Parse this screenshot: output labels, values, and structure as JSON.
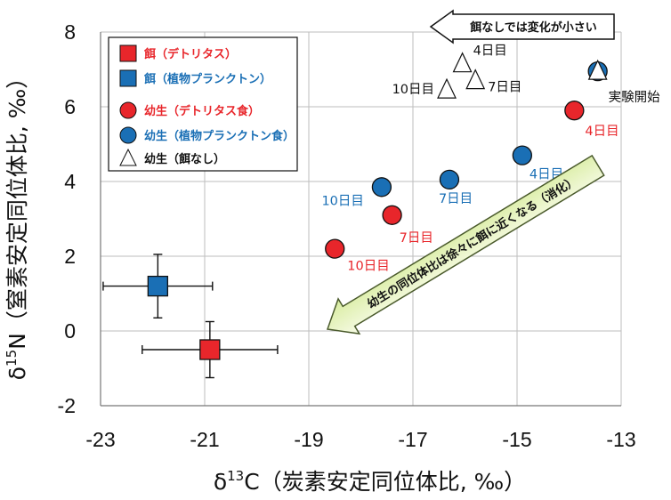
{
  "chart_data": {
    "type": "scatter",
    "xlim": [
      -23,
      -13
    ],
    "ylim": [
      -2,
      8
    ],
    "x_ticks": [
      "-23",
      "-21",
      "-19",
      "-17",
      "-15",
      "-13"
    ],
    "y_ticks": [
      "-2",
      "0",
      "2",
      "4",
      "6",
      "8"
    ],
    "xlabel": {
      "pre": "δ",
      "sup": "13",
      "post": "C（炭素安定同位体比, ‰）"
    },
    "ylabel": {
      "pre": "δ",
      "sup": "15",
      "post": "N（窒素安定同位体比, ‰）"
    },
    "grid": true,
    "legend_position": "top-left",
    "series": [
      {
        "name": "餌（デトリタス）",
        "marker": "square",
        "color": "#e8262b",
        "points": [
          {
            "x": -20.9,
            "y": -0.5,
            "xerr": 1.3,
            "yerr": 0.75
          }
        ]
      },
      {
        "name": "餌（植物プランクトン）",
        "marker": "square",
        "color": "#1a6fb5",
        "points": [
          {
            "x": -21.9,
            "y": 1.2,
            "xerr": 1.05,
            "yerr": 0.85
          }
        ]
      },
      {
        "name": "幼生（デトリタス食）",
        "marker": "circle",
        "color": "#e8262b",
        "points": [
          {
            "x": -18.5,
            "y": 2.2,
            "label": "10日目"
          },
          {
            "x": -17.4,
            "y": 3.1,
            "label": "7日目"
          },
          {
            "x": -13.9,
            "y": 5.9,
            "label": "4日目"
          }
        ]
      },
      {
        "name": "幼生（植物プランクトン食）",
        "marker": "circle",
        "color": "#1a6fb5",
        "points": [
          {
            "x": -17.6,
            "y": 3.85,
            "label": "10日目"
          },
          {
            "x": -16.3,
            "y": 4.05,
            "label": "7日目"
          },
          {
            "x": -14.9,
            "y": 4.7,
            "label": "4日目"
          },
          {
            "x": -13.45,
            "y": 6.95
          }
        ]
      },
      {
        "name": "幼生（餌なし）",
        "marker": "triangle",
        "color": "#ffffff",
        "points": [
          {
            "x": -16.35,
            "y": 6.45,
            "label": "10日目"
          },
          {
            "x": -15.8,
            "y": 6.7,
            "label": "7日目"
          },
          {
            "x": -16.05,
            "y": 7.15,
            "label": "4日目"
          },
          {
            "x": -13.45,
            "y": 6.95
          }
        ]
      }
    ],
    "annotations": {
      "start_label": "実験開始",
      "no_food_note": "餌なしでは変化が小さい",
      "digestion_note": "幼生の同位体比は徐々に餌に近くなる（消化）"
    }
  }
}
